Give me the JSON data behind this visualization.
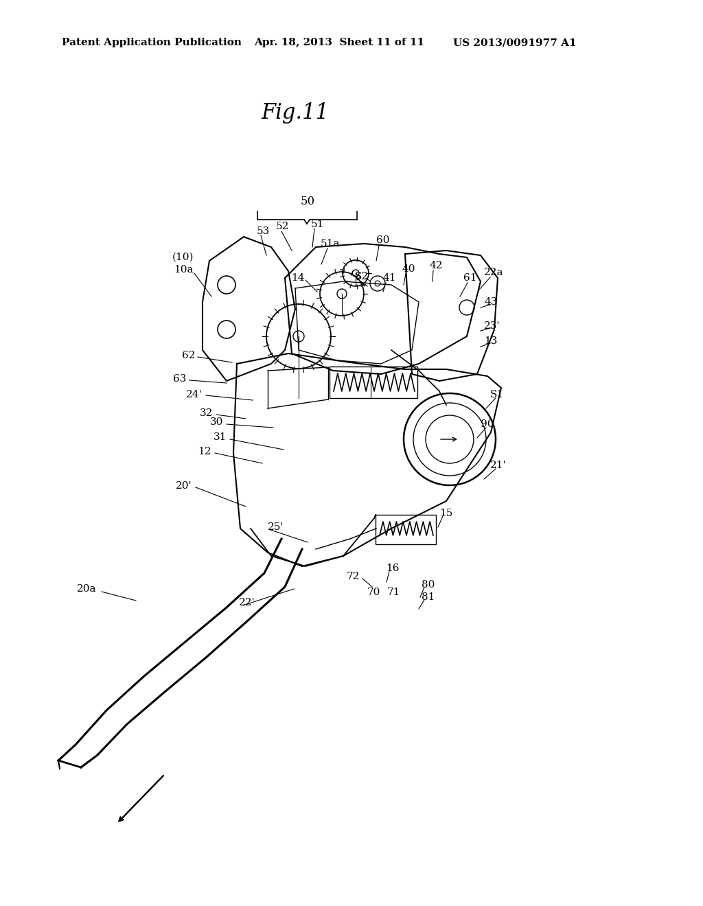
{
  "title": "Fig.11",
  "header_left": "Patent Application Publication",
  "header_mid": "Apr. 18, 2013  Sheet 11 of 11",
  "header_right": "US 2013/0091977 A1",
  "bg_color": "#ffffff",
  "text_color": "#000000",
  "fig_title_fontsize": 22,
  "header_fontsize": 11,
  "label_fontsize": 11
}
